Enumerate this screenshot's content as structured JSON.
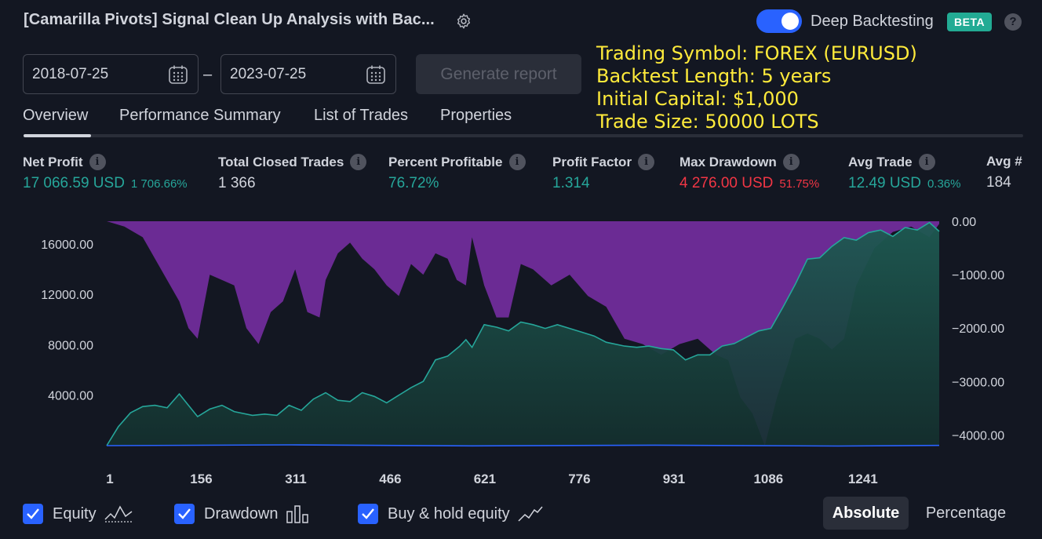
{
  "header": {
    "title": "[Camarilla Pivots] Signal Clean Up Analysis with Bac...",
    "deep_backtesting_label": "Deep Backtesting",
    "deep_backtesting_enabled": true,
    "beta_badge": "BETA",
    "help_glyph": "?"
  },
  "dates": {
    "start": "2018-07-25",
    "separator": "–",
    "end": "2023-07-25"
  },
  "generate_button": "Generate report",
  "info_overlay": {
    "line1": "Trading Symbol: FOREX (EURUSD)",
    "line2": "Backtest Length: 5 years",
    "line3": "Initial Capital: $1,000",
    "line4": "Trade Size: 50000 LOTS"
  },
  "tabs": [
    {
      "label": "Overview",
      "active": true
    },
    {
      "label": "Performance Summary",
      "active": false
    },
    {
      "label": "List of Trades",
      "active": false
    },
    {
      "label": "Properties",
      "active": false
    }
  ],
  "stats": {
    "net_profit": {
      "label": "Net Profit",
      "value": "17 066.59 USD",
      "pct": "1 706.66%"
    },
    "total_closed_trades": {
      "label": "Total Closed Trades",
      "value": "1 366"
    },
    "percent_profitable": {
      "label": "Percent Profitable",
      "value": "76.72%"
    },
    "profit_factor": {
      "label": "Profit Factor",
      "value": "1.314"
    },
    "max_drawdown": {
      "label": "Max Drawdown",
      "value": "4 276.00 USD",
      "pct": "51.75%"
    },
    "avg_trade": {
      "label": "Avg Trade",
      "value": "12.49 USD",
      "pct": "0.36%"
    },
    "avg_bars": {
      "label": "Avg #",
      "value": "184"
    }
  },
  "colors": {
    "equity_line": "#26a69a",
    "drawdown": "#7b2fa8",
    "buy_hold": "#2962ff",
    "positive": "#26a69a",
    "negative": "#f23645"
  },
  "chart_data": {
    "type": "area",
    "x_ticks": [
      "1",
      "156",
      "311",
      "466",
      "621",
      "776",
      "931",
      "1086",
      "1241"
    ],
    "left_axis_ticks": [
      "16000.00",
      "12000.00",
      "8000.00",
      "4000.00"
    ],
    "right_axis_ticks": [
      "0.00",
      "−1000.00",
      "−2000.00",
      "−3000.00",
      "−4000.00"
    ],
    "xlim": [
      1,
      1366
    ],
    "left_ylim": [
      0,
      17800
    ],
    "right_ylim": [
      -4200,
      0
    ],
    "series": [
      {
        "name": "Equity",
        "axis": "left",
        "x": [
          1,
          20,
          40,
          60,
          80,
          100,
          120,
          150,
          170,
          190,
          210,
          240,
          260,
          280,
          300,
          320,
          340,
          360,
          380,
          400,
          420,
          440,
          460,
          480,
          500,
          520,
          540,
          560,
          580,
          590,
          600,
          620,
          640,
          660,
          680,
          700,
          720,
          740,
          760,
          780,
          800,
          820,
          850,
          870,
          890,
          910,
          930,
          950,
          970,
          990,
          1010,
          1030,
          1050,
          1070,
          1090,
          1110,
          1130,
          1150,
          1170,
          1190,
          1210,
          1230,
          1250,
          1270,
          1290,
          1310,
          1330,
          1350,
          1366
        ],
        "values": [
          0,
          1500,
          2600,
          3100,
          3200,
          3000,
          4100,
          2300,
          2900,
          3200,
          2700,
          2400,
          2500,
          2400,
          3200,
          2800,
          3700,
          4200,
          3600,
          3500,
          4200,
          3900,
          3400,
          4000,
          4600,
          5100,
          6800,
          7100,
          7900,
          8400,
          7800,
          9600,
          9400,
          9100,
          9800,
          9600,
          9300,
          9600,
          9300,
          9000,
          8700,
          8200,
          7900,
          7800,
          7900,
          7700,
          7600,
          6800,
          7200,
          7200,
          7900,
          8100,
          8600,
          9100,
          9300,
          11000,
          12800,
          14800,
          14900,
          15800,
          16500,
          16300,
          16900,
          17100,
          16600,
          17300,
          17100,
          17700,
          17000
        ]
      },
      {
        "name": "Drawdown",
        "axis": "right",
        "x": [
          1,
          30,
          60,
          90,
          120,
          135,
          150,
          170,
          190,
          210,
          230,
          250,
          270,
          290,
          310,
          330,
          350,
          360,
          380,
          400,
          420,
          440,
          460,
          480,
          500,
          520,
          540,
          560,
          575,
          590,
          600,
          620,
          640,
          660,
          680,
          700,
          730,
          760,
          790,
          820,
          850,
          880,
          910,
          940,
          970,
          1000,
          1020,
          1040,
          1060,
          1080,
          1100,
          1120,
          1130,
          1150,
          1170,
          1190,
          1210,
          1230,
          1260,
          1290,
          1320,
          1350,
          1366
        ],
        "values": [
          0,
          -100,
          -300,
          -900,
          -1500,
          -2000,
          -2200,
          -1000,
          -1100,
          -1200,
          -2000,
          -2300,
          -1700,
          -1500,
          -900,
          -1700,
          -1800,
          -1100,
          -600,
          -400,
          -700,
          -900,
          -1200,
          -1400,
          -800,
          -1000,
          -600,
          -700,
          -1100,
          -1200,
          -300,
          -1200,
          -1800,
          -1800,
          -800,
          -900,
          -1200,
          -1000,
          -1400,
          -1600,
          -2200,
          -2300,
          -2500,
          -2300,
          -2200,
          -2500,
          -2600,
          -3300,
          -3600,
          -4200,
          -3300,
          -2600,
          -2200,
          -2100,
          -2200,
          -2400,
          -2200,
          -1200,
          -500,
          -200,
          -100,
          -300,
          -50
        ]
      },
      {
        "name": "Buy & hold equity",
        "axis": "left",
        "x": [
          1,
          300,
          600,
          900,
          1200,
          1366
        ],
        "values": [
          0,
          60,
          -20,
          40,
          -30,
          20
        ]
      }
    ]
  },
  "legend": {
    "equity": {
      "label": "Equity",
      "checked": true
    },
    "drawdown": {
      "label": "Drawdown",
      "checked": true
    },
    "buy_hold": {
      "label": "Buy & hold equity",
      "checked": true
    }
  },
  "scale_buttons": {
    "absolute": "Absolute",
    "percentage": "Percentage",
    "selected": "absolute"
  }
}
